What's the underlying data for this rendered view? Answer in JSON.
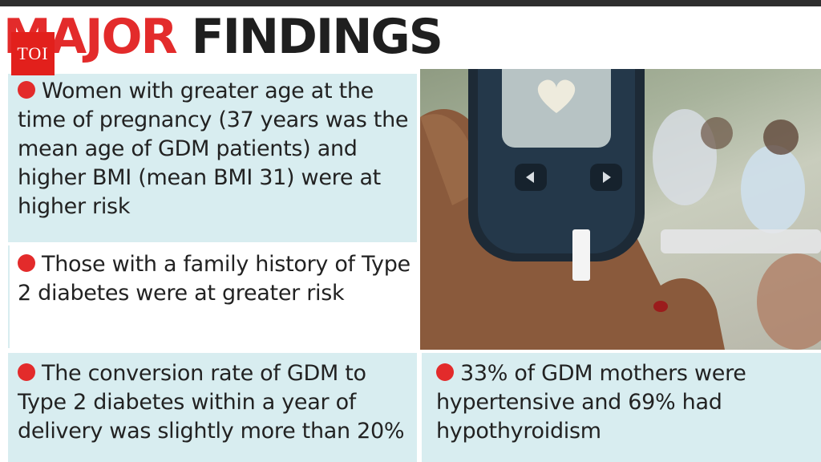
{
  "header": {
    "title_word_1": "MAJOR",
    "title_word_2": "FINDINGS",
    "logo_text": "TOI"
  },
  "findings": [
    {
      "text": "Women with greater age at the time of pregnancy (37 years was the mean age of GDM patients) and higher BMI (mean BMI 31) were at higher risk"
    },
    {
      "text": "Those with a family history of Type 2 diabetes were at greater risk"
    },
    {
      "text": "The conversion rate of GDM to Type 2 diabetes within a year of delivery was slightly more than 20%"
    },
    {
      "text": "33% of GDM mothers were hypertensive and 69% had hypothyroidism"
    }
  ],
  "photo": {
    "subject": "hand-holding-glucometer",
    "screen_icon": "heart-icon"
  },
  "colors": {
    "accent_red": "#e32b2b",
    "box_blue": "#d8edf0",
    "text_dark": "#222222",
    "top_bar": "#2e2e2e"
  }
}
